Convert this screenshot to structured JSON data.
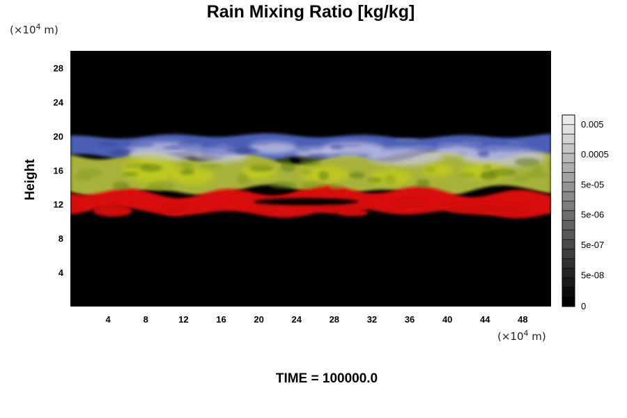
{
  "chart_data": {
    "type": "heatmap",
    "title": "Rain Mixing Ratio [kg/kg]",
    "ylabel": "Height",
    "x_unit_prefix": "(×10",
    "x_unit_exp": "4",
    "x_unit_suffix": " m)",
    "y_unit_prefix": "(×10",
    "y_unit_exp": "4",
    "y_unit_suffix": " m)",
    "xlim": [
      0,
      51
    ],
    "ylim": [
      0,
      30
    ],
    "x_ticks": [
      4,
      8,
      12,
      16,
      20,
      24,
      28,
      32,
      36,
      40,
      44,
      48
    ],
    "y_ticks": [
      4,
      8,
      12,
      16,
      20,
      24,
      28
    ],
    "bands": [
      {
        "color": "#4b5fb5",
        "y_range": [
          17.5,
          20
        ]
      },
      {
        "color": "#a8b23a",
        "y_range": [
          13.5,
          17.5
        ]
      },
      {
        "color": "#d81010",
        "y_range": [
          11,
          13.5
        ]
      }
    ],
    "colorbar": {
      "labels": [
        "0.005",
        "0.0005",
        "5e-05",
        "5e-06",
        "5e-07",
        "5e-08",
        "0"
      ],
      "levels": 20
    },
    "footer": "TIME = 100000.0"
  }
}
